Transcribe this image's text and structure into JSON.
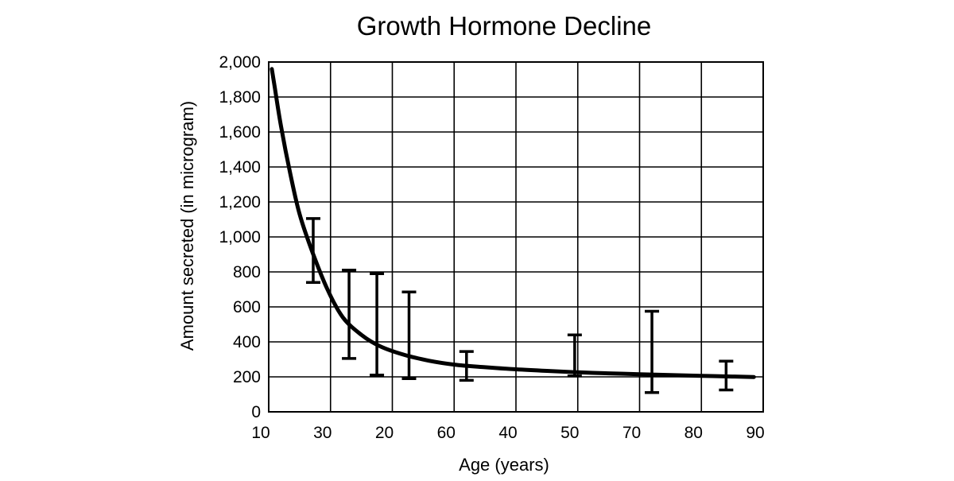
{
  "chart_data": {
    "type": "line",
    "title": "Growth Hormone Decline",
    "xlabel": "Age (years)",
    "ylabel": "Amount secreted (in microgram)",
    "x_tick_labels": [
      "10",
      "30",
      "20",
      "60",
      "40",
      "50",
      "70",
      "80",
      "90"
    ],
    "y_ticks": [
      0,
      200,
      400,
      600,
      800,
      1000,
      1200,
      1400,
      1600,
      1800,
      2000
    ],
    "y_tick_labels": [
      "0",
      "200",
      "400",
      "600",
      "800",
      "1,000",
      "1,200",
      "1,400",
      "1,600",
      "1,800",
      "2,000"
    ],
    "x_axis_range": [
      0,
      8
    ],
    "ylim": [
      0,
      2000
    ],
    "grid": true,
    "legend": "none",
    "series": [
      {
        "line_color": "#000000",
        "curve_x": [
          0.05,
          0.1,
          0.2,
          0.35,
          0.5,
          0.7,
          0.95,
          1.2,
          1.5,
          1.8,
          2.2,
          2.6,
          3.0,
          3.5,
          4.0,
          4.5,
          5.0,
          5.5,
          6.0,
          6.5,
          7.0,
          7.5,
          7.85
        ],
        "curve_y": [
          1960,
          1850,
          1630,
          1360,
          1130,
          920,
          700,
          540,
          440,
          375,
          325,
          292,
          270,
          255,
          243,
          234,
          226,
          220,
          215,
          210,
          206,
          202,
          199
        ],
        "error_bars": [
          {
            "x": 0.72,
            "low": 740,
            "high": 1105
          },
          {
            "x": 1.3,
            "low": 305,
            "high": 810
          },
          {
            "x": 1.75,
            "low": 210,
            "high": 790
          },
          {
            "x": 2.27,
            "low": 190,
            "high": 685
          },
          {
            "x": 3.2,
            "low": 180,
            "high": 345
          },
          {
            "x": 4.95,
            "low": 205,
            "high": 440
          },
          {
            "x": 6.2,
            "low": 110,
            "high": 575
          },
          {
            "x": 7.4,
            "low": 125,
            "high": 290
          }
        ]
      }
    ]
  }
}
